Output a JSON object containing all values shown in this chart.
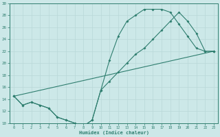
{
  "xlabel": "Humidex (Indice chaleur)",
  "bg_color": "#cce8e8",
  "grid_color": "#b8d8d8",
  "line_color": "#2e7d6e",
  "xlim": [
    -0.5,
    23.5
  ],
  "ylim": [
    10,
    30
  ],
  "xticks": [
    0,
    1,
    2,
    3,
    4,
    5,
    6,
    7,
    8,
    9,
    10,
    11,
    12,
    13,
    14,
    15,
    16,
    17,
    18,
    19,
    20,
    21,
    22,
    23
  ],
  "yticks": [
    10,
    12,
    14,
    16,
    18,
    20,
    22,
    24,
    26,
    28,
    30
  ],
  "line1_x": [
    0,
    1,
    2,
    3,
    4,
    5,
    6,
    7,
    8,
    9,
    10,
    11,
    12,
    13,
    14,
    15,
    16,
    17,
    18,
    19,
    20,
    21,
    22,
    23
  ],
  "line1_y": [
    14.5,
    13.0,
    13.5,
    13.0,
    12.5,
    11.0,
    10.5,
    10.0,
    9.5,
    10.5,
    15.5,
    20.5,
    24.5,
    27.0,
    28.0,
    29.0,
    29.0,
    29.0,
    28.5,
    26.5,
    24.5,
    22.5,
    22.0,
    22.0
  ],
  "line2_x": [
    0,
    1,
    2,
    3,
    4,
    5,
    6,
    7,
    8,
    9,
    10,
    11,
    12,
    13,
    14,
    15,
    16,
    17,
    18,
    19,
    20,
    21,
    22,
    23
  ],
  "line2_y": [
    14.5,
    13.0,
    13.5,
    13.0,
    12.5,
    11.0,
    10.5,
    10.0,
    9.5,
    10.5,
    15.5,
    17.0,
    18.5,
    20.0,
    21.5,
    22.5,
    24.0,
    25.5,
    27.0,
    28.5,
    27.0,
    25.0,
    22.0,
    22.0
  ],
  "line3_x": [
    0,
    23
  ],
  "line3_y": [
    14.5,
    22.0
  ]
}
